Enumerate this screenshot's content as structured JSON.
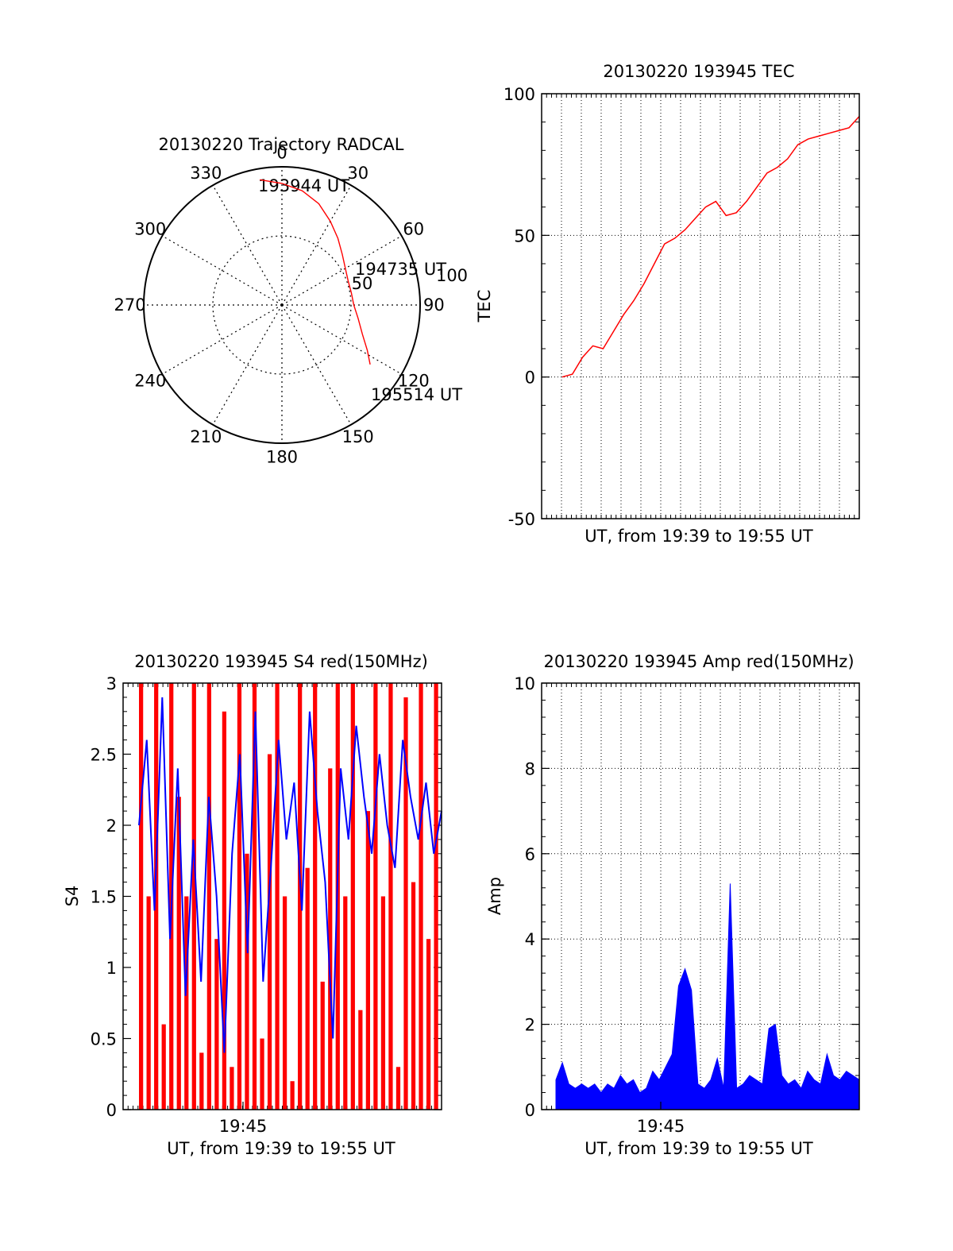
{
  "colors": {
    "red": "#ff0000",
    "blue": "#0000ff",
    "axis": "#000000"
  },
  "chart_data": [
    {
      "type": "polar",
      "title": "20130220 Trajectory RADCAL",
      "angle_labels": [
        "0",
        "30",
        "60",
        "90",
        "120",
        "150",
        "180",
        "210",
        "240",
        "270",
        "300",
        "330"
      ],
      "radius_labels": [
        "50",
        "100"
      ],
      "rmax": 100,
      "series": [
        {
          "color": "red",
          "points": [
            [
              -10,
              92
            ],
            [
              0,
              88
            ],
            [
              10,
              84
            ],
            [
              20,
              78
            ],
            [
              30,
              70
            ],
            [
              40,
              63
            ],
            [
              50,
              57
            ],
            [
              60,
              53
            ],
            [
              70,
              51
            ],
            [
              80,
              51
            ],
            [
              90,
              52
            ],
            [
              100,
              56
            ],
            [
              110,
              62
            ],
            [
              118,
              70
            ],
            [
              124,
              77
            ]
          ]
        }
      ],
      "annotations": [
        "193944 UT",
        "194735 UT",
        "195514 UT"
      ]
    },
    {
      "type": "line",
      "title": "20130220 193945 TEC",
      "xlabel": "UT, from 19:39 to 19:55 UT",
      "ylabel": "TEC",
      "xlim": [
        19.62,
        19.93
      ],
      "ylim": [
        -50,
        100
      ],
      "yticks": [
        "-50",
        "0",
        "50",
        "100"
      ],
      "grid": true,
      "series": [
        {
          "color": "red",
          "x": [
            19.64,
            19.65,
            19.66,
            19.67,
            19.68,
            19.69,
            19.7,
            19.71,
            19.72,
            19.73,
            19.74,
            19.75,
            19.76,
            19.77,
            19.78,
            19.79,
            19.8,
            19.81,
            19.82,
            19.83,
            19.84,
            19.85,
            19.86,
            19.87,
            19.88,
            19.89,
            19.9,
            19.91,
            19.92,
            19.93
          ],
          "y": [
            0,
            1,
            7,
            11,
            10,
            16,
            22,
            27,
            33,
            40,
            47,
            49,
            52,
            56,
            60,
            62,
            57,
            58,
            62,
            67,
            72,
            74,
            77,
            82,
            84,
            85,
            86,
            87,
            88,
            92
          ]
        }
      ]
    },
    {
      "type": "line",
      "title": "20130220 193945 S4 red(150MHz)",
      "xlabel": "UT, from 19:39 to 19:55 UT",
      "ylabel": "S4",
      "xlim": [
        0,
        1
      ],
      "ylim": [
        0,
        3
      ],
      "yticks": [
        "0",
        "0.5",
        "1",
        "1.5",
        "2",
        "2.5",
        "3"
      ],
      "xticks": [
        "19:45"
      ],
      "grid": false,
      "series": [
        {
          "color": "red",
          "values": [
            3,
            1.5,
            3,
            0.6,
            3,
            2.2,
            1.5,
            3,
            0.4,
            3,
            1.2,
            2.8,
            0.3,
            3,
            1.8,
            3,
            0.5,
            2.5,
            3,
            1.5,
            0.2,
            3,
            1.7,
            3,
            0.9,
            2.4,
            3,
            1.5,
            3,
            0.7,
            2.1,
            3,
            1.5,
            3,
            0.3,
            2.9,
            1.6,
            3,
            1.2,
            3
          ]
        },
        {
          "color": "blue",
          "values": [
            2.0,
            2.6,
            1.4,
            2.9,
            1.2,
            2.4,
            0.8,
            1.9,
            0.9,
            2.2,
            1.5,
            0.4,
            1.8,
            2.5,
            1.1,
            2.8,
            0.9,
            1.7,
            2.6,
            1.9,
            2.3,
            1.4,
            2.8,
            2.1,
            1.6,
            0.5,
            2.4,
            1.9,
            2.7,
            2.2,
            1.8,
            2.5,
            2.0,
            1.7,
            2.6,
            2.2,
            1.9,
            2.3,
            1.8,
            2.1
          ]
        }
      ]
    },
    {
      "type": "line",
      "title": "20130220 193945 Amp red(150MHz)",
      "xlabel": "UT, from 19:39 to 19:55 UT",
      "ylabel": "Amp",
      "xlim": [
        0,
        1
      ],
      "ylim": [
        0,
        10
      ],
      "yticks": [
        "0",
        "2",
        "4",
        "6",
        "8",
        "10"
      ],
      "xticks": [
        "19:45"
      ],
      "grid": true,
      "series": [
        {
          "color": "blue",
          "values": [
            0.7,
            1.1,
            0.6,
            0.5,
            0.6,
            0.5,
            0.6,
            0.4,
            0.6,
            0.5,
            0.8,
            0.6,
            0.7,
            0.4,
            0.5,
            0.9,
            0.7,
            1.0,
            1.3,
            2.9,
            3.3,
            2.8,
            0.6,
            0.5,
            0.7,
            1.2,
            0.5,
            5.3,
            0.5,
            0.6,
            0.8,
            0.7,
            0.6,
            1.9,
            2.0,
            0.8,
            0.6,
            0.7,
            0.5,
            0.9,
            0.7,
            0.6,
            1.3,
            0.8,
            0.7,
            0.9,
            0.8,
            0.7
          ]
        }
      ]
    }
  ]
}
